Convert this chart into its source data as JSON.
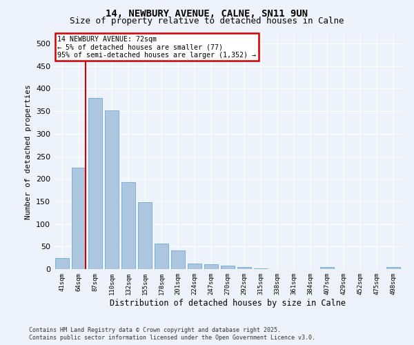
{
  "title1": "14, NEWBURY AVENUE, CALNE, SN11 9UN",
  "title2": "Size of property relative to detached houses in Calne",
  "xlabel": "Distribution of detached houses by size in Calne",
  "ylabel": "Number of detached properties",
  "categories": [
    "41sqm",
    "64sqm",
    "87sqm",
    "110sqm",
    "132sqm",
    "155sqm",
    "178sqm",
    "201sqm",
    "224sqm",
    "247sqm",
    "270sqm",
    "292sqm",
    "315sqm",
    "338sqm",
    "361sqm",
    "384sqm",
    "407sqm",
    "429sqm",
    "452sqm",
    "475sqm",
    "498sqm"
  ],
  "values": [
    25,
    225,
    380,
    352,
    193,
    148,
    57,
    42,
    13,
    10,
    8,
    5,
    2,
    0,
    0,
    0,
    4,
    0,
    0,
    0,
    4
  ],
  "bar_color": "#adc6e0",
  "bar_edge_color": "#6aaad4",
  "annotation_text_line1": "14 NEWBURY AVENUE: 72sqm",
  "annotation_text_line2": "← 5% of detached houses are smaller (77)",
  "annotation_text_line3": "95% of semi-detached houses are larger (1,352) →",
  "annotation_box_color": "#ffffff",
  "annotation_box_edge_color": "#cc0000",
  "vline_color": "#cc0000",
  "vline_x_index": 1,
  "footer1": "Contains HM Land Registry data © Crown copyright and database right 2025.",
  "footer2": "Contains public sector information licensed under the Open Government Licence v3.0.",
  "bg_color": "#eef2fb",
  "plot_bg_color": "#eef2fb",
  "grid_color": "#ffffff",
  "ylim": [
    0,
    520
  ],
  "yticks": [
    0,
    50,
    100,
    150,
    200,
    250,
    300,
    350,
    400,
    450,
    500
  ],
  "title_fontsize": 10,
  "subtitle_fontsize": 9
}
